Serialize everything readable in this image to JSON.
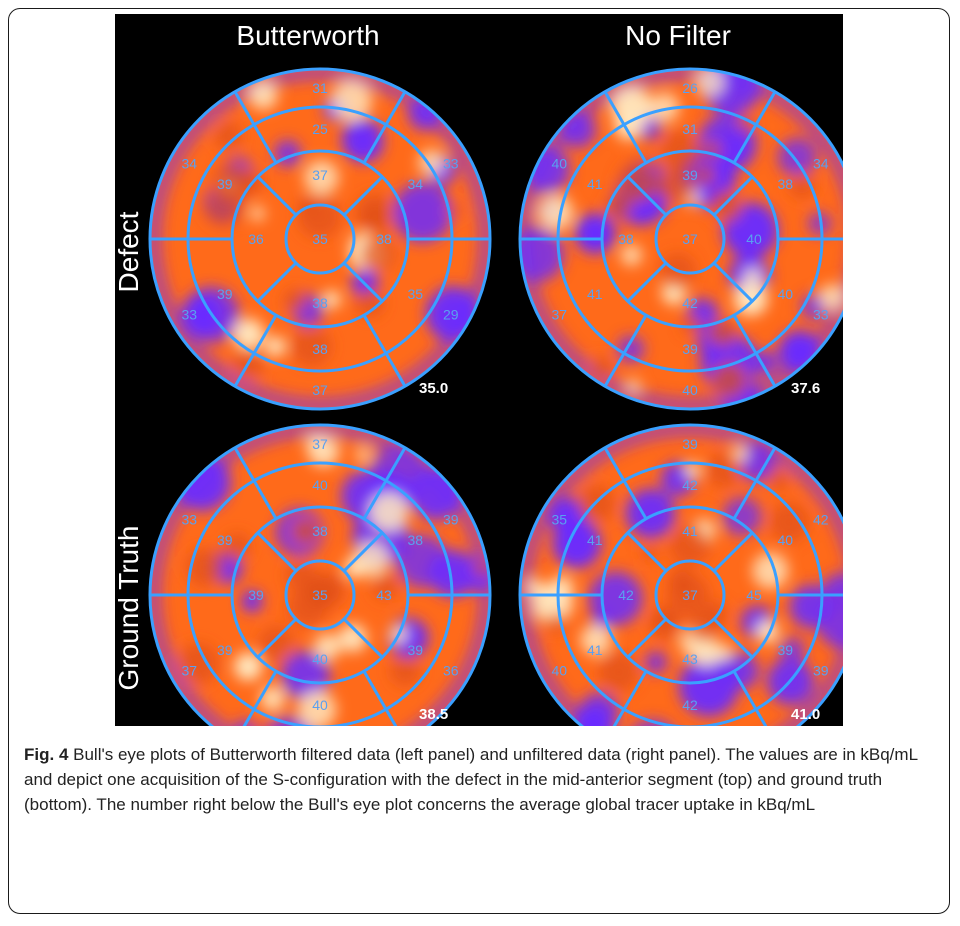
{
  "figure": {
    "column_titles": [
      "Butterworth",
      "No Filter"
    ],
    "row_titles": [
      "Defect",
      "Ground Truth"
    ],
    "colors": {
      "ring": "#3aa0ff",
      "low": "#6a2cff",
      "mid": "#ff6a1a",
      "high": "#ffe8c0",
      "background": "#000000"
    },
    "plots": [
      {
        "segments": [
          "31",
          "33",
          "29",
          "37",
          "33",
          "34",
          "25",
          "34",
          "35",
          "38",
          "39",
          "39",
          "37",
          "38",
          "38",
          "36",
          "35"
        ],
        "global": "35.0"
      },
      {
        "segments": [
          "26",
          "34",
          "33",
          "40",
          "37",
          "40",
          "31",
          "38",
          "40",
          "39",
          "41",
          "41",
          "39",
          "40",
          "42",
          "38",
          "37"
        ],
        "global": "37.6"
      },
      {
        "segments": [
          "37",
          "39",
          "36",
          "39",
          "37",
          "33",
          "40",
          "38",
          "39",
          "40",
          "39",
          "39",
          "38",
          "43",
          "40",
          "39",
          "35"
        ],
        "global": "38.5"
      },
      {
        "segments": [
          "39",
          "42",
          "39",
          "44",
          "40",
          "35",
          "42",
          "40",
          "39",
          "42",
          "41",
          "41",
          "41",
          "45",
          "43",
          "42",
          "37"
        ],
        "global": "41.0"
      }
    ]
  },
  "caption": {
    "label": "Fig. 4",
    "text": " Bull's eye plots of Butterworth filtered data (left panel) and unfiltered data (right panel). The values are in kBq/mL and depict one acquisition of the S-configuration with the defect in the mid-anterior segment (top) and ground truth (bottom). The number right below the Bull's eye plot concerns the average global tracer uptake in kBq/mL"
  }
}
